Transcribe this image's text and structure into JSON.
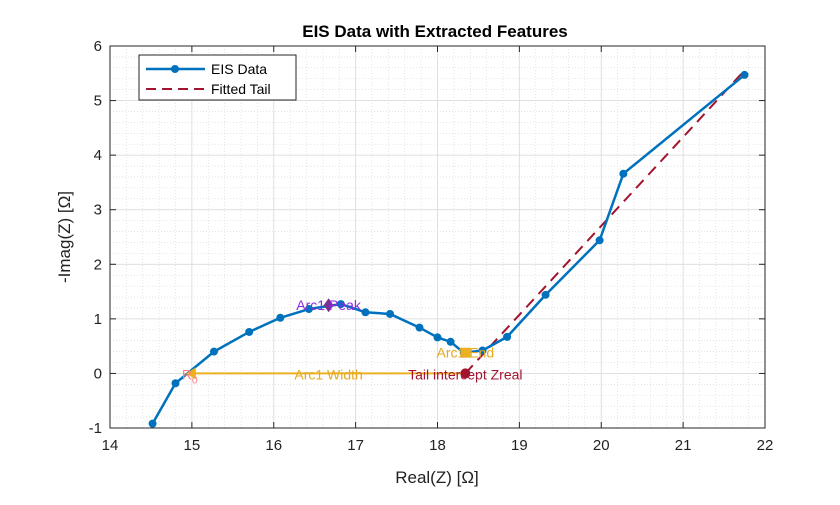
{
  "chart_data": {
    "type": "line",
    "title": "EIS Data with Extracted Features",
    "xlabel": "Real(Z) [Ω]",
    "ylabel": "-Imag(Z) [Ω]",
    "xlim": [
      14,
      22
    ],
    "ylim": [
      -1,
      6
    ],
    "xticks": [
      14,
      15,
      16,
      17,
      18,
      19,
      20,
      21,
      22
    ],
    "yticks": [
      -1,
      0,
      1,
      2,
      3,
      4,
      5,
      6
    ],
    "grid": true,
    "minor_grid": true,
    "legend_position": "top-left",
    "series": [
      {
        "name": "EIS Data",
        "style": "line-markers",
        "color": "#0072BD",
        "points": [
          [
            14.52,
            -0.92
          ],
          [
            14.8,
            -0.18
          ],
          [
            15.27,
            0.4
          ],
          [
            15.7,
            0.76
          ],
          [
            16.08,
            1.02
          ],
          [
            16.43,
            1.18
          ],
          [
            16.82,
            1.27
          ],
          [
            17.12,
            1.12
          ],
          [
            17.42,
            1.09
          ],
          [
            17.78,
            0.84
          ],
          [
            18.0,
            0.66
          ],
          [
            18.16,
            0.58
          ],
          [
            18.32,
            0.38
          ],
          [
            18.55,
            0.42
          ],
          [
            18.85,
            0.67
          ],
          [
            19.32,
            1.44
          ],
          [
            19.98,
            2.44
          ],
          [
            20.27,
            3.66
          ],
          [
            21.75,
            5.47
          ]
        ]
      },
      {
        "name": "Fitted Tail",
        "style": "dashed",
        "color": "#A2142F",
        "points": [
          [
            18.34,
            0.0
          ],
          [
            21.73,
            5.52
          ]
        ]
      }
    ],
    "annotations": [
      {
        "label": "R",
        "subscript": "0",
        "x": 15.0,
        "y": 0.0,
        "color": "#EDB120",
        "text_color": "#FF7F7F",
        "marker": "left-triangle"
      },
      {
        "label": "Arc1 Peak",
        "x": 16.67,
        "y": 1.25,
        "color": "#7E2F8E",
        "text_color": "#8A2BE2",
        "marker": "diamond"
      },
      {
        "label": "Arc1 End",
        "x": 18.34,
        "y": 0.38,
        "color": "#EDB120",
        "text_color": "#E5A922",
        "marker": "square"
      },
      {
        "label": "Tail intercept Zreal",
        "x": 18.34,
        "y": 0.0,
        "color": "#A2142F",
        "text_color": "#A2142F",
        "marker": "circle"
      },
      {
        "label": "Arc1 Width",
        "x": 16.67,
        "y": 0.0,
        "color": "#EDB120",
        "text_color": "#E5A922",
        "marker": "none"
      }
    ],
    "arc_width_line": {
      "from": [
        15.0,
        0.0
      ],
      "to": [
        18.34,
        0.0
      ],
      "color": "#EDB120"
    }
  }
}
